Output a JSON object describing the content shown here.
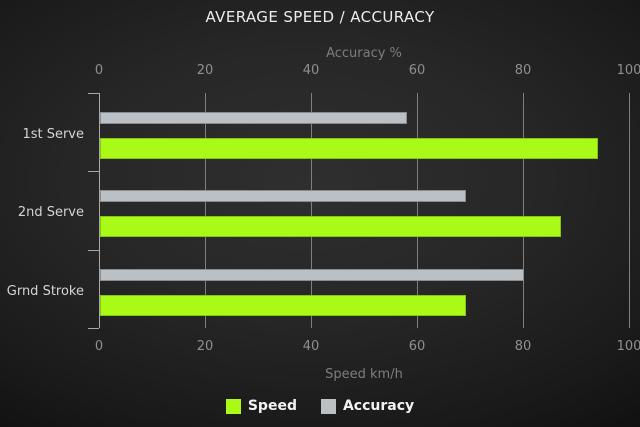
{
  "chart_data": {
    "type": "bar",
    "orientation": "horizontal",
    "title": "AVERAGE SPEED / ACCURACY",
    "categories": [
      "1st Serve",
      "2nd Serve",
      "Grnd Stroke"
    ],
    "series": [
      {
        "name": "Speed",
        "axis": "bottom",
        "color": "#a9fb17",
        "values": [
          94,
          87,
          69
        ]
      },
      {
        "name": "Accuracy",
        "axis": "top",
        "color": "#bac0c3",
        "values": [
          58,
          69,
          80
        ]
      }
    ],
    "top_axis": {
      "label": "Accuracy %",
      "ticks": [
        0,
        20,
        40,
        60,
        80,
        100
      ],
      "range": [
        0,
        100
      ]
    },
    "bottom_axis": {
      "label": "Speed km/h",
      "ticks": [
        0,
        20,
        40,
        60,
        80,
        100
      ],
      "range": [
        0,
        100
      ]
    },
    "legend": [
      {
        "label": "Speed",
        "color": "#a9fb17"
      },
      {
        "label": "Accuracy",
        "color": "#bac0c3"
      }
    ],
    "legend_position": "bottom",
    "grid": true,
    "background": "dark-radial-gradient"
  }
}
